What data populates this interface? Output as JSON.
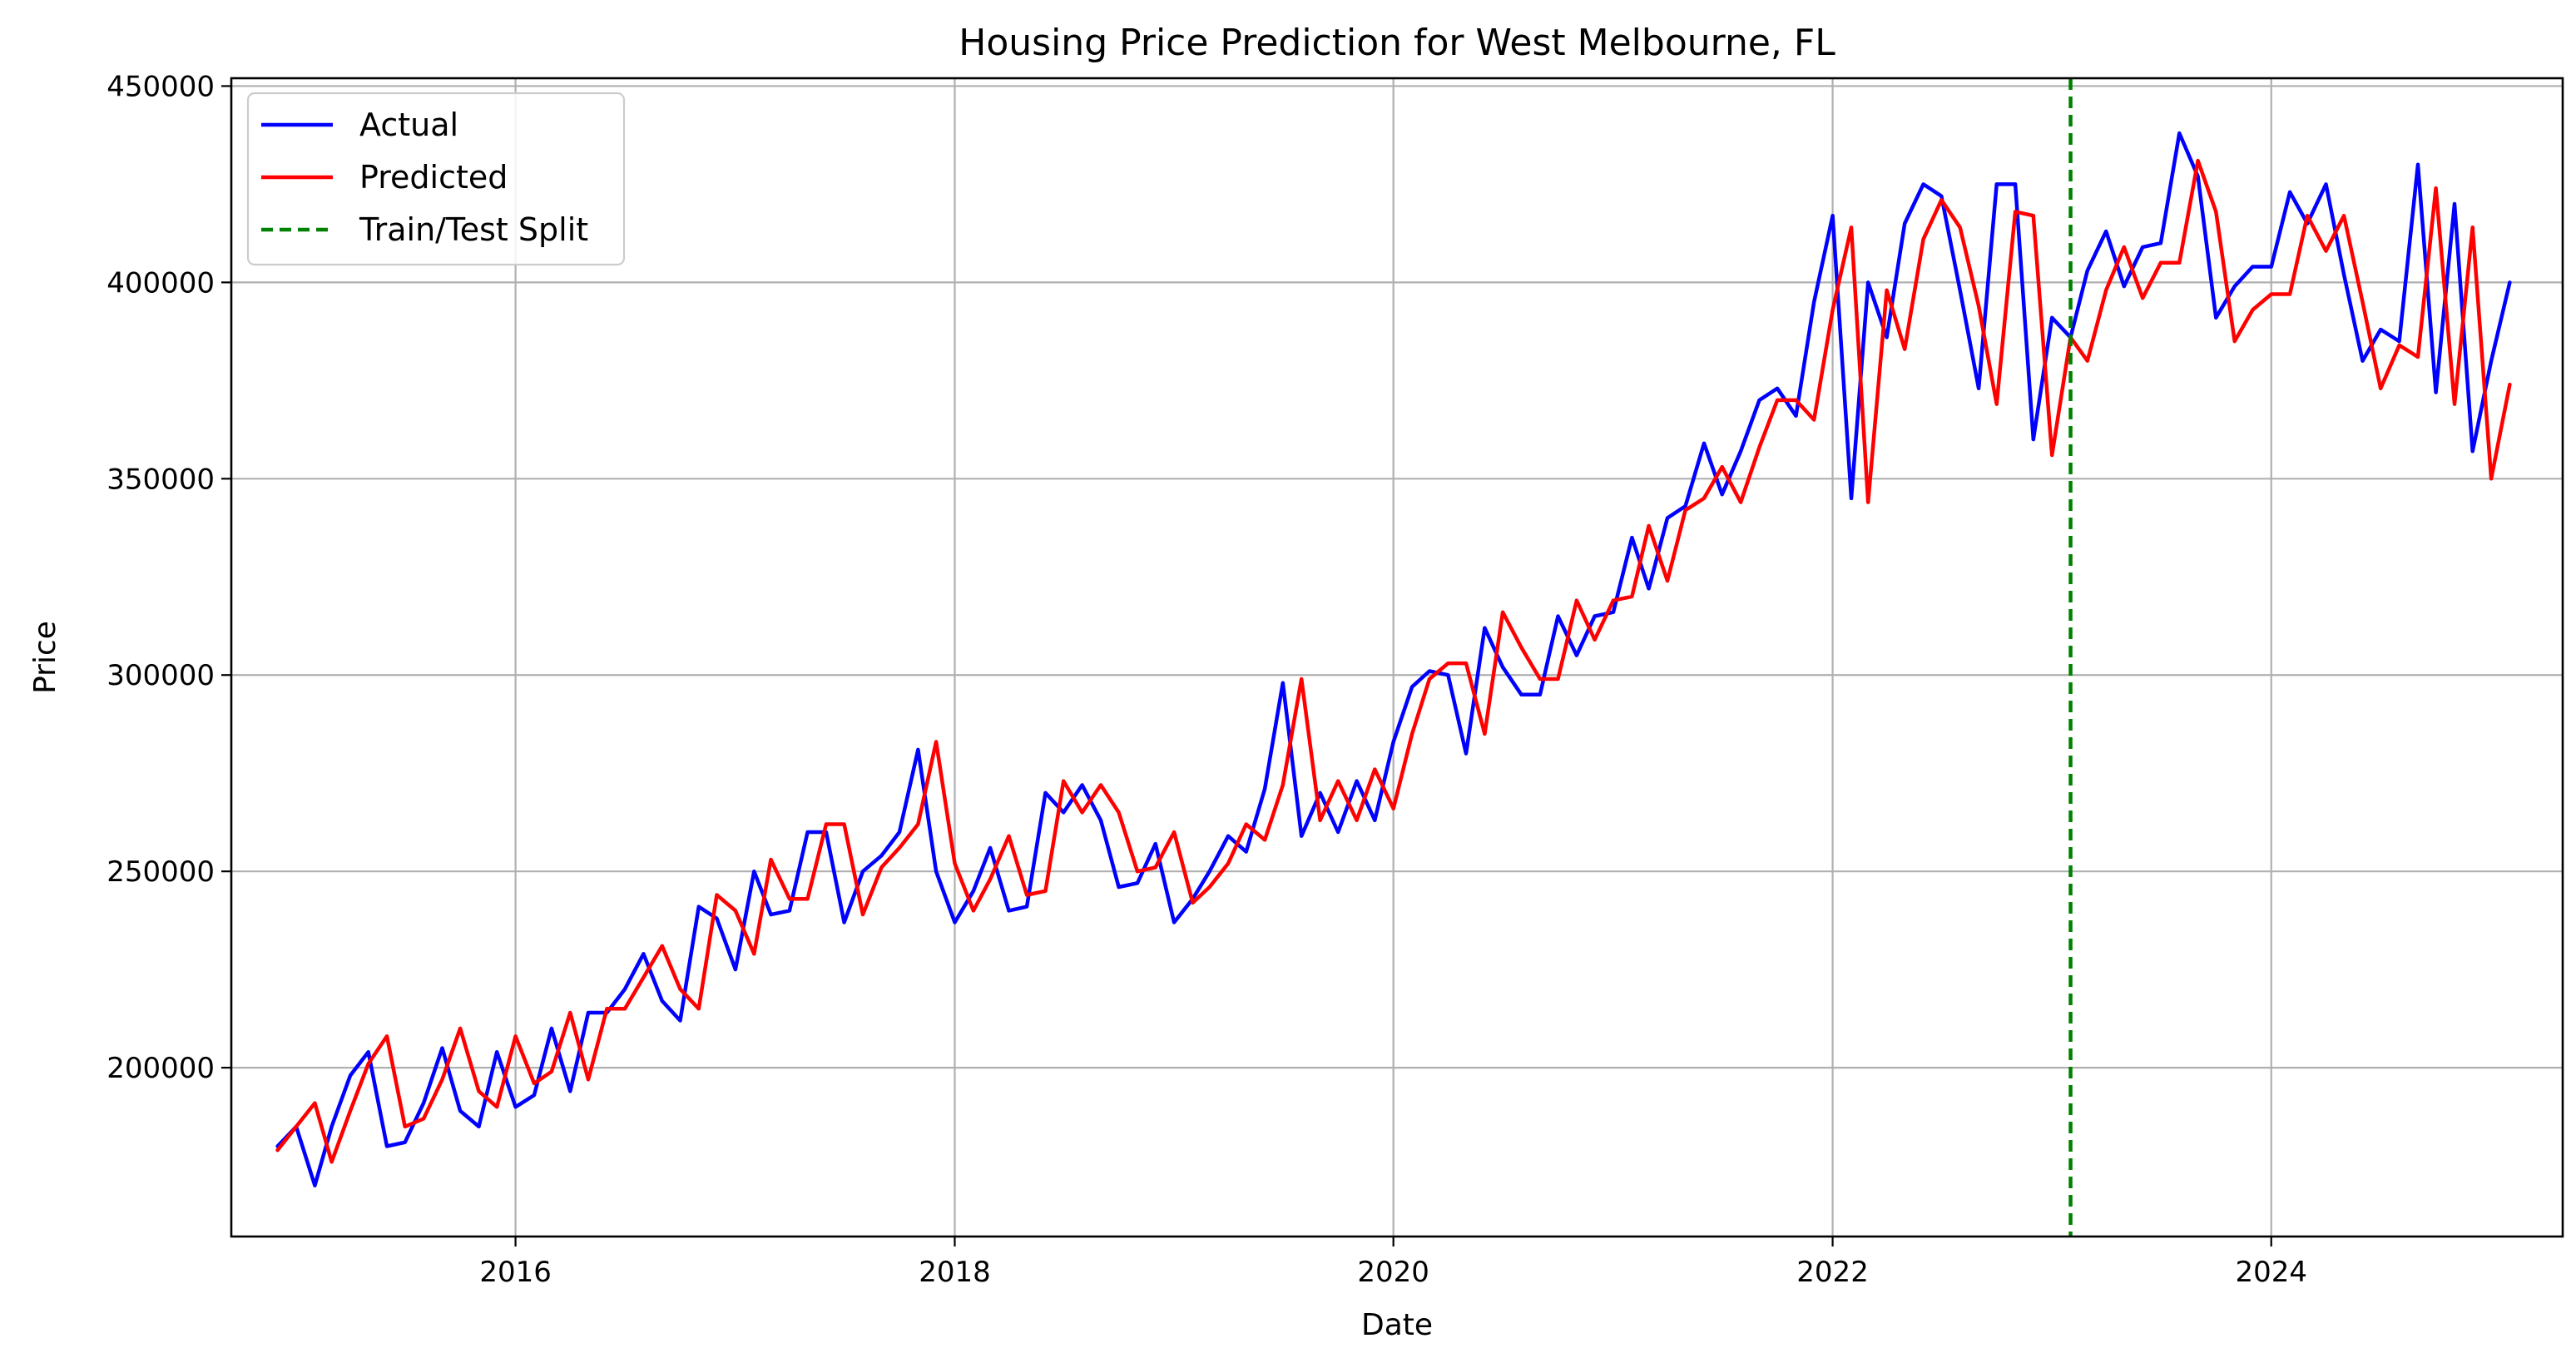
{
  "chart_data": {
    "type": "line",
    "title": "Housing Price Prediction for West Melbourne, FL",
    "xlabel": "Date",
    "ylabel": "Price",
    "x_range": [
      "2014-09-15",
      "2025-04-30"
    ],
    "ylim": [
      157000,
      452000
    ],
    "x_ticks": [
      {
        "date": "2016-01-01",
        "label": "2016"
      },
      {
        "date": "2018-01-01",
        "label": "2018"
      },
      {
        "date": "2020-01-01",
        "label": "2020"
      },
      {
        "date": "2022-01-01",
        "label": "2022"
      },
      {
        "date": "2024-01-01",
        "label": "2024"
      }
    ],
    "y_ticks": [
      {
        "value": 200000,
        "label": "200000"
      },
      {
        "value": 250000,
        "label": "250000"
      },
      {
        "value": 300000,
        "label": "300000"
      },
      {
        "value": 350000,
        "label": "350000"
      },
      {
        "value": 400000,
        "label": "400000"
      },
      {
        "value": 450000,
        "label": "450000"
      }
    ],
    "grid": true,
    "legend_position": "top-left",
    "series_start": "2014-12",
    "series": [
      {
        "name": "Actual",
        "color": "#0000ff",
        "style": "solid",
        "values": [
          180000,
          185000,
          170000,
          185000,
          198000,
          204000,
          180000,
          181000,
          191000,
          205000,
          189000,
          185000,
          204000,
          190000,
          193000,
          210000,
          194000,
          214000,
          214000,
          220000,
          229000,
          217000,
          212000,
          241000,
          238000,
          225000,
          250000,
          239000,
          240000,
          260000,
          260000,
          237000,
          250000,
          254000,
          260000,
          281000,
          250000,
          237000,
          245000,
          256000,
          240000,
          241000,
          270000,
          265000,
          272000,
          263000,
          246000,
          247000,
          257000,
          237000,
          243000,
          250000,
          259000,
          255000,
          271000,
          298000,
          259000,
          270000,
          260000,
          273000,
          263000,
          283000,
          297000,
          301000,
          300000,
          280000,
          312000,
          302000,
          295000,
          295000,
          315000,
          305000,
          315000,
          316000,
          335000,
          322000,
          340000,
          343000,
          359000,
          346000,
          357000,
          370000,
          373000,
          366000,
          395000,
          417000,
          345000,
          400000,
          386000,
          415000,
          425000,
          422000,
          398000,
          373000,
          425000,
          425000,
          360000,
          391000,
          386000,
          403000,
          413000,
          399000,
          409000,
          410000,
          438000,
          427000,
          391000,
          399000,
          404000,
          404000,
          423000,
          415000,
          425000,
          402000,
          380000,
          388000,
          385000,
          430000,
          372000,
          420000,
          357000,
          380000,
          400000
        ]
      },
      {
        "name": "Predicted",
        "color": "#ff0000",
        "style": "solid",
        "values": [
          179000,
          185000,
          191000,
          176000,
          189000,
          201000,
          208000,
          185000,
          187000,
          197000,
          210000,
          194000,
          190000,
          208000,
          196000,
          199000,
          214000,
          197000,
          215000,
          215000,
          223000,
          231000,
          220000,
          215000,
          244000,
          240000,
          229000,
          253000,
          243000,
          243000,
          262000,
          262000,
          239000,
          251000,
          256000,
          262000,
          283000,
          252000,
          240000,
          248000,
          259000,
          244000,
          245000,
          273000,
          265000,
          272000,
          265000,
          250000,
          251000,
          260000,
          242000,
          246000,
          252000,
          262000,
          258000,
          272000,
          299000,
          263000,
          273000,
          263000,
          276000,
          266000,
          285000,
          299000,
          303000,
          303000,
          285000,
          316000,
          307000,
          299000,
          299000,
          319000,
          309000,
          319000,
          320000,
          338000,
          324000,
          342000,
          345000,
          353000,
          344000,
          358000,
          370000,
          370000,
          365000,
          393000,
          414000,
          344000,
          398000,
          383000,
          411000,
          421000,
          414000,
          394000,
          369000,
          418000,
          417000,
          356000,
          386000,
          380000,
          398000,
          409000,
          396000,
          405000,
          405000,
          431000,
          418000,
          385000,
          393000,
          397000,
          397000,
          417000,
          408000,
          417000,
          395000,
          373000,
          384000,
          381000,
          424000,
          369000,
          414000,
          350000,
          374000
        ]
      }
    ],
    "split_date": "2023-02",
    "split_label": "Train/Test Split",
    "split_color": "#008000"
  }
}
